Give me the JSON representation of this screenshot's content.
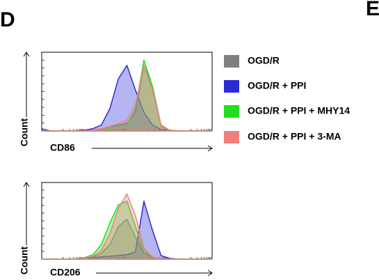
{
  "panel_labels": [
    "D",
    "E"
  ],
  "chart_data": [
    {
      "type": "area",
      "xlabel": "CD86",
      "ylabel": "Count",
      "x": [
        0,
        5,
        10,
        15,
        20,
        25,
        30,
        35,
        40,
        45,
        50,
        55,
        60,
        65,
        70,
        75,
        80,
        85,
        90,
        95,
        100
      ],
      "xlim": [
        0,
        100
      ],
      "ylim": [
        0,
        100
      ],
      "series": [
        {
          "name": "OGD/R",
          "color": "#808080",
          "values": [
            0,
            0,
            0,
            0,
            0,
            0,
            1,
            3,
            6,
            8,
            10,
            25,
            88,
            60,
            8,
            1,
            0,
            0,
            0,
            0,
            0
          ]
        },
        {
          "name": "OGD/R + PPI",
          "color": "#2b2bd6",
          "values": [
            3,
            0,
            0,
            0,
            0,
            1,
            3,
            8,
            30,
            70,
            88,
            55,
            25,
            8,
            2,
            1,
            0,
            0,
            0,
            0,
            0
          ]
        },
        {
          "name": "OGD/R + PPI + MHY14",
          "color": "#22dd22",
          "values": [
            0,
            0,
            0,
            0,
            0,
            0,
            1,
            2,
            4,
            6,
            8,
            30,
            95,
            60,
            6,
            1,
            0,
            0,
            0,
            0,
            0
          ]
        },
        {
          "name": "OGD/R + PPI + 3-MA",
          "color": "#f08080",
          "values": [
            0,
            0,
            0,
            0,
            0,
            0,
            1,
            3,
            6,
            10,
            14,
            35,
            88,
            55,
            8,
            1,
            0,
            0,
            0,
            0,
            0
          ]
        }
      ]
    },
    {
      "type": "area",
      "xlabel": "CD206",
      "ylabel": "Count",
      "x": [
        0,
        5,
        10,
        15,
        20,
        25,
        30,
        35,
        40,
        45,
        50,
        55,
        60,
        65,
        70,
        75,
        80,
        85,
        90,
        95,
        100
      ],
      "xlim": [
        0,
        100
      ],
      "ylim": [
        0,
        100
      ],
      "series": [
        {
          "color": "#808080",
          "values": [
            0,
            0,
            0,
            0,
            0,
            1,
            3,
            8,
            20,
            45,
            55,
            30,
            8,
            2,
            0,
            0,
            0,
            0,
            0,
            0,
            0
          ]
        },
        {
          "color": "#2b2bd6",
          "values": [
            0,
            0,
            0,
            0,
            0,
            1,
            2,
            3,
            4,
            5,
            6,
            10,
            80,
            40,
            5,
            1,
            0,
            0,
            0,
            0,
            0
          ]
        },
        {
          "color": "#22dd22",
          "values": [
            0,
            0,
            0,
            0,
            0,
            2,
            6,
            20,
            50,
            75,
            80,
            45,
            12,
            2,
            0,
            0,
            0,
            0,
            0,
            0,
            0
          ]
        },
        {
          "color": "#f08080",
          "values": [
            0,
            0,
            0,
            0,
            0,
            1,
            4,
            12,
            35,
            70,
            90,
            60,
            15,
            3,
            0,
            0,
            0,
            0,
            0,
            0,
            0
          ]
        }
      ]
    }
  ]
}
